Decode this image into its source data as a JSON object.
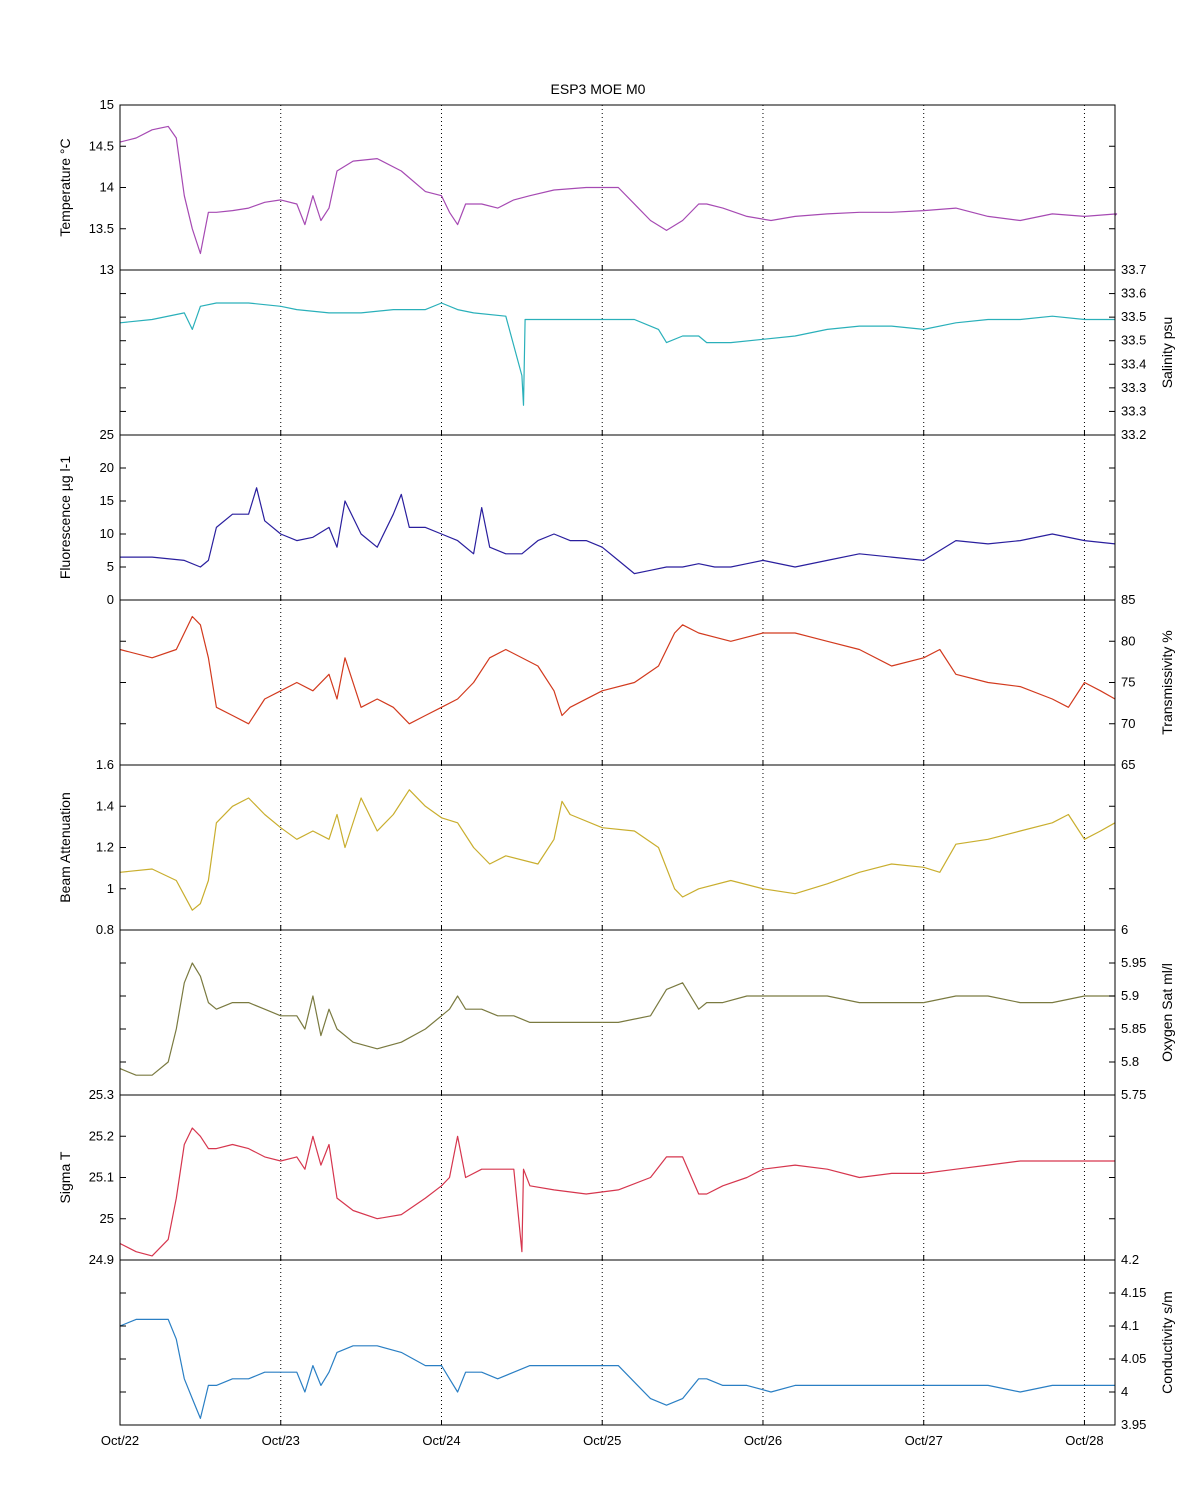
{
  "title": "ESP3 MOE   M0",
  "x_ticks": [
    "Oct/22",
    "Oct/23",
    "Oct/24",
    "Oct/25",
    "Oct/26",
    "Oct/27",
    "Oct/28"
  ],
  "chart_data": [
    {
      "type": "line",
      "id": "temperature",
      "ylabel": "Temperature °C",
      "ylabel_side": "left",
      "ylim": [
        13,
        15
      ],
      "tick_labels": [
        "13",
        "13.5",
        "14",
        "14.5",
        "15"
      ],
      "color": "#a64ab3",
      "x": [
        0,
        0.1,
        0.2,
        0.3,
        0.35,
        0.4,
        0.45,
        0.5,
        0.55,
        0.6,
        0.7,
        0.8,
        0.9,
        1.0,
        1.1,
        1.15,
        1.2,
        1.25,
        1.3,
        1.35,
        1.45,
        1.6,
        1.75,
        1.9,
        2.0,
        2.05,
        2.1,
        2.15,
        2.25,
        2.35,
        2.45,
        2.55,
        2.7,
        2.9,
        3.1,
        3.3,
        3.4,
        3.5,
        3.6,
        3.65,
        3.75,
        3.9,
        4.05,
        4.2,
        4.4,
        4.6,
        4.8,
        5.0,
        5.2,
        5.4,
        5.6,
        5.8,
        6.0,
        6.2,
        6.19
      ],
      "y": [
        14.55,
        14.6,
        14.7,
        14.74,
        14.6,
        13.9,
        13.5,
        13.2,
        13.7,
        13.7,
        13.72,
        13.75,
        13.82,
        13.85,
        13.8,
        13.55,
        13.9,
        13.6,
        13.75,
        14.2,
        14.32,
        14.35,
        14.2,
        13.95,
        13.9,
        13.7,
        13.55,
        13.8,
        13.8,
        13.75,
        13.85,
        13.9,
        13.97,
        14.0,
        14.0,
        13.6,
        13.48,
        13.6,
        13.8,
        13.8,
        13.75,
        13.65,
        13.6,
        13.65,
        13.68,
        13.7,
        13.7,
        13.72,
        13.75,
        13.65,
        13.6,
        13.68,
        13.65,
        13.68,
        13.66
      ]
    },
    {
      "type": "line",
      "id": "salinity",
      "ylabel": "Salinity psu",
      "ylabel_side": "right",
      "ylim": [
        33.2,
        33.7
      ],
      "tick_labels": [
        "33.2",
        "33.3",
        "33.3",
        "33.4",
        "33.5",
        "33.5",
        "33.6",
        "33.7"
      ],
      "color": "#2ab0ba",
      "x": [
        0,
        0.2,
        0.4,
        0.45,
        0.5,
        0.6,
        0.8,
        1.0,
        1.1,
        1.3,
        1.5,
        1.7,
        1.9,
        2.0,
        2.1,
        2.2,
        2.4,
        2.5,
        2.51,
        2.52,
        2.6,
        2.8,
        3.0,
        3.2,
        3.35,
        3.4,
        3.5,
        3.6,
        3.65,
        3.8,
        4.0,
        4.2,
        4.4,
        4.6,
        4.8,
        5.0,
        5.2,
        5.4,
        5.6,
        5.8,
        6.0,
        6.19
      ],
      "y": [
        33.54,
        33.55,
        33.57,
        33.52,
        33.59,
        33.6,
        33.6,
        33.59,
        33.58,
        33.57,
        33.57,
        33.58,
        33.58,
        33.6,
        33.58,
        33.57,
        33.56,
        33.38,
        33.29,
        33.55,
        33.55,
        33.55,
        33.55,
        33.55,
        33.52,
        33.48,
        33.5,
        33.5,
        33.48,
        33.48,
        33.49,
        33.5,
        33.52,
        33.53,
        33.53,
        33.52,
        33.54,
        33.55,
        33.55,
        33.56,
        33.55,
        33.55
      ]
    },
    {
      "type": "line",
      "id": "fluorescence",
      "ylabel": "Fluorescence µg l-1",
      "ylabel_side": "left",
      "ylim": [
        0,
        25
      ],
      "tick_labels": [
        "0",
        "5",
        "10",
        "15",
        "20",
        "25"
      ],
      "color": "#2a1f9e",
      "x": [
        0,
        0.2,
        0.4,
        0.5,
        0.55,
        0.6,
        0.7,
        0.8,
        0.85,
        0.9,
        1.0,
        1.1,
        1.2,
        1.3,
        1.35,
        1.4,
        1.5,
        1.6,
        1.7,
        1.75,
        1.8,
        1.9,
        2.0,
        2.1,
        2.2,
        2.25,
        2.3,
        2.4,
        2.5,
        2.6,
        2.7,
        2.8,
        2.9,
        3.0,
        3.1,
        3.2,
        3.3,
        3.4,
        3.5,
        3.6,
        3.7,
        3.8,
        3.9,
        4.0,
        4.2,
        4.4,
        4.6,
        4.8,
        5.0,
        5.2,
        5.4,
        5.6,
        5.8,
        6.0,
        6.19
      ],
      "y": [
        6.5,
        6.5,
        6,
        5,
        6,
        11,
        13,
        13,
        17,
        12,
        10,
        9,
        9.5,
        11,
        8,
        15,
        10,
        8,
        13,
        16,
        11,
        11,
        10,
        9,
        7,
        14,
        8,
        7,
        7,
        9,
        10,
        9,
        9,
        8,
        6,
        4,
        4.5,
        5,
        5,
        5.5,
        5,
        5,
        5.5,
        6,
        5,
        6,
        7,
        6.5,
        6,
        9,
        8.5,
        9,
        10,
        9,
        8.5
      ]
    },
    {
      "type": "line",
      "id": "transmissivity",
      "ylabel": "Transmissivity %",
      "ylabel_side": "right",
      "ylim": [
        65,
        85
      ],
      "tick_labels": [
        "65",
        "70",
        "75",
        "80",
        "85"
      ],
      "color": "#d23a1e",
      "x": [
        0,
        0.2,
        0.35,
        0.45,
        0.5,
        0.55,
        0.6,
        0.7,
        0.8,
        0.9,
        1.0,
        1.1,
        1.2,
        1.3,
        1.35,
        1.4,
        1.5,
        1.6,
        1.7,
        1.8,
        1.9,
        2.0,
        2.1,
        2.2,
        2.3,
        2.4,
        2.6,
        2.7,
        2.75,
        2.8,
        3.0,
        3.2,
        3.35,
        3.45,
        3.5,
        3.6,
        3.8,
        4.0,
        4.2,
        4.4,
        4.6,
        4.8,
        5.0,
        5.1,
        5.2,
        5.4,
        5.6,
        5.8,
        5.9,
        6.0,
        6.1,
        6.19
      ],
      "y": [
        79,
        78,
        79,
        83,
        82,
        78,
        72,
        71,
        70,
        73,
        74,
        75,
        74,
        76,
        73,
        78,
        72,
        73,
        72,
        70,
        71,
        72,
        73,
        75,
        78,
        79,
        77,
        74,
        71,
        72,
        74,
        75,
        77,
        81,
        82,
        81,
        80,
        81,
        81,
        80,
        79,
        77,
        78,
        79,
        76,
        75,
        74.5,
        73,
        72,
        75,
        74,
        73
      ]
    },
    {
      "type": "line",
      "id": "beam_attenuation",
      "ylabel": "Beam Attenuation",
      "ylabel_side": "left",
      "ylim": [
        0.6,
        1.6
      ],
      "tick_labels": [
        "0.8",
        "1",
        "1.2",
        "1.4",
        "1.6"
      ],
      "color": "#c9ae2e",
      "x": [
        0,
        0.2,
        0.35,
        0.45,
        0.5,
        0.55,
        0.6,
        0.7,
        0.8,
        0.9,
        1.0,
        1.1,
        1.2,
        1.3,
        1.35,
        1.4,
        1.5,
        1.6,
        1.7,
        1.8,
        1.9,
        2.0,
        2.1,
        2.2,
        2.3,
        2.4,
        2.6,
        2.7,
        2.75,
        2.8,
        3.0,
        3.2,
        3.35,
        3.45,
        3.5,
        3.6,
        3.8,
        4.0,
        4.2,
        4.4,
        4.6,
        4.8,
        5.0,
        5.1,
        5.2,
        5.4,
        5.6,
        5.8,
        5.9,
        6.0,
        6.1,
        6.19
      ],
      "y": [
        0.95,
        0.97,
        0.9,
        0.72,
        0.76,
        0.9,
        1.25,
        1.35,
        1.4,
        1.3,
        1.22,
        1.15,
        1.2,
        1.15,
        1.3,
        1.1,
        1.4,
        1.2,
        1.3,
        1.45,
        1.35,
        1.28,
        1.25,
        1.1,
        1.0,
        1.05,
        1.0,
        1.15,
        1.38,
        1.3,
        1.22,
        1.2,
        1.1,
        0.85,
        0.8,
        0.85,
        0.9,
        0.85,
        0.82,
        0.88,
        0.95,
        1.0,
        0.98,
        0.95,
        1.12,
        1.15,
        1.2,
        1.25,
        1.3,
        1.15,
        1.2,
        1.25
      ]
    },
    {
      "type": "line",
      "id": "oxygen_sat",
      "ylabel": "Oxygen Sat ml/l",
      "ylabel_side": "right",
      "ylim": [
        5.75,
        6.0
      ],
      "tick_labels": [
        "5.75",
        "5.8",
        "5.85",
        "5.9",
        "5.95",
        "6"
      ],
      "color": "#7a7a40",
      "x": [
        0,
        0.1,
        0.2,
        0.3,
        0.35,
        0.4,
        0.45,
        0.5,
        0.55,
        0.6,
        0.7,
        0.8,
        0.9,
        1.0,
        1.1,
        1.15,
        1.2,
        1.25,
        1.3,
        1.35,
        1.45,
        1.6,
        1.75,
        1.9,
        2.0,
        2.05,
        2.1,
        2.15,
        2.25,
        2.35,
        2.45,
        2.55,
        2.7,
        2.9,
        3.1,
        3.3,
        3.4,
        3.5,
        3.6,
        3.65,
        3.75,
        3.9,
        4.0,
        4.2,
        4.4,
        4.6,
        4.8,
        5.0,
        5.2,
        5.4,
        5.6,
        5.8,
        6.0,
        6.19
      ],
      "y": [
        5.79,
        5.78,
        5.78,
        5.8,
        5.85,
        5.92,
        5.95,
        5.93,
        5.89,
        5.88,
        5.89,
        5.89,
        5.88,
        5.87,
        5.87,
        5.85,
        5.9,
        5.84,
        5.88,
        5.85,
        5.83,
        5.82,
        5.83,
        5.85,
        5.87,
        5.88,
        5.9,
        5.88,
        5.88,
        5.87,
        5.87,
        5.86,
        5.86,
        5.86,
        5.86,
        5.87,
        5.91,
        5.92,
        5.88,
        5.89,
        5.89,
        5.9,
        5.9,
        5.9,
        5.9,
        5.89,
        5.89,
        5.89,
        5.9,
        5.9,
        5.89,
        5.89,
        5.9,
        5.9
      ]
    },
    {
      "type": "line",
      "id": "sigma_t",
      "ylabel": "Sigma T",
      "ylabel_side": "left",
      "ylim": [
        24.9,
        25.3
      ],
      "tick_labels": [
        "24.9",
        "25",
        "25.1",
        "25.2",
        "25.3"
      ],
      "color": "#d6364e",
      "x": [
        0,
        0.1,
        0.2,
        0.3,
        0.35,
        0.4,
        0.45,
        0.5,
        0.55,
        0.6,
        0.7,
        0.8,
        0.9,
        1.0,
        1.1,
        1.15,
        1.2,
        1.25,
        1.3,
        1.35,
        1.45,
        1.6,
        1.75,
        1.9,
        2.0,
        2.05,
        2.1,
        2.15,
        2.25,
        2.35,
        2.45,
        2.5,
        2.51,
        2.55,
        2.7,
        2.9,
        3.1,
        3.3,
        3.4,
        3.5,
        3.6,
        3.65,
        3.75,
        3.9,
        4.0,
        4.2,
        4.4,
        4.6,
        4.8,
        5.0,
        5.2,
        5.4,
        5.6,
        5.8,
        6.0,
        6.19
      ],
      "y": [
        24.94,
        24.92,
        24.91,
        24.95,
        25.05,
        25.18,
        25.22,
        25.2,
        25.17,
        25.17,
        25.18,
        25.17,
        25.15,
        25.14,
        25.15,
        25.12,
        25.2,
        25.13,
        25.18,
        25.05,
        25.02,
        25.0,
        25.01,
        25.05,
        25.08,
        25.1,
        25.2,
        25.1,
        25.12,
        25.12,
        25.12,
        24.92,
        25.12,
        25.08,
        25.07,
        25.06,
        25.07,
        25.1,
        25.15,
        25.15,
        25.06,
        25.06,
        25.08,
        25.1,
        25.12,
        25.13,
        25.12,
        25.1,
        25.11,
        25.11,
        25.12,
        25.13,
        25.14,
        25.14,
        25.14,
        25.14
      ]
    },
    {
      "type": "line",
      "id": "conductivity",
      "ylabel": "Conductivity s/m",
      "ylabel_side": "right",
      "ylim": [
        3.95,
        4.2
      ],
      "tick_labels": [
        "3.95",
        "4",
        "4.05",
        "4.1",
        "4.15",
        "4.2"
      ],
      "color": "#2a7fc4",
      "x": [
        0,
        0.1,
        0.2,
        0.3,
        0.35,
        0.4,
        0.45,
        0.5,
        0.55,
        0.6,
        0.7,
        0.8,
        0.9,
        1.0,
        1.1,
        1.15,
        1.2,
        1.25,
        1.3,
        1.35,
        1.45,
        1.6,
        1.75,
        1.9,
        2.0,
        2.05,
        2.1,
        2.15,
        2.25,
        2.35,
        2.45,
        2.55,
        2.7,
        2.9,
        3.1,
        3.3,
        3.4,
        3.5,
        3.6,
        3.65,
        3.75,
        3.9,
        4.05,
        4.2,
        4.4,
        4.6,
        4.8,
        5.0,
        5.2,
        5.4,
        5.6,
        5.8,
        6.0,
        6.19
      ],
      "y": [
        4.1,
        4.11,
        4.11,
        4.11,
        4.08,
        4.02,
        3.99,
        3.96,
        4.01,
        4.01,
        4.02,
        4.02,
        4.03,
        4.03,
        4.03,
        4.0,
        4.04,
        4.01,
        4.03,
        4.06,
        4.07,
        4.07,
        4.06,
        4.04,
        4.04,
        4.02,
        4.0,
        4.03,
        4.03,
        4.02,
        4.03,
        4.04,
        4.04,
        4.04,
        4.04,
        3.99,
        3.98,
        3.99,
        4.02,
        4.02,
        4.01,
        4.01,
        4.0,
        4.01,
        4.01,
        4.01,
        4.01,
        4.01,
        4.01,
        4.01,
        4.0,
        4.01,
        4.01,
        4.01
      ]
    }
  ]
}
